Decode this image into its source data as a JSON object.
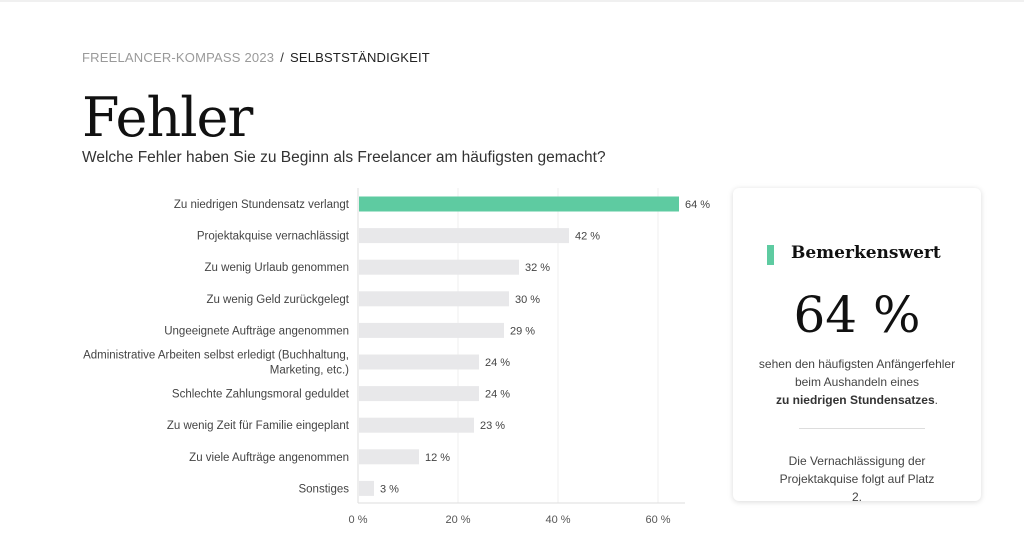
{
  "breadcrumb": {
    "parent": "FREELANCER-KOMPASS 2023",
    "separator": "/",
    "current": "SELBSTSTÄNDIGKEIT"
  },
  "title": "Fehler",
  "subtitle": "Welche Fehler haben Sie zu Beginn als Freelancer am häufigsten gemacht?",
  "colors": {
    "highlight": "#5ecba1",
    "bar": "#e8e8ea"
  },
  "chart_data": {
    "type": "bar",
    "orientation": "horizontal",
    "categories": [
      "Zu niedrigen Stundensatz verlangt",
      "Projektakquise vernachlässigt",
      "Zu wenig Urlaub genommen",
      "Zu wenig Geld zurückgelegt",
      "Ungeeignete Aufträge angenommen",
      "Administrative Arbeiten selbst erledigt (Buchhaltung, Marketing, etc.)",
      "Schlechte Zahlungsmoral geduldet",
      "Zu wenig Zeit für Familie eingeplant",
      "Zu viele Aufträge angenommen",
      "Sonstiges"
    ],
    "category_lines": [
      [
        "Zu niedrigen Stundensatz verlangt"
      ],
      [
        "Projektakquise vernachlässigt"
      ],
      [
        "Zu wenig Urlaub genommen"
      ],
      [
        "Zu wenig Geld zurückgelegt"
      ],
      [
        "Ungeeignete Aufträge angenommen"
      ],
      [
        "Administrative Arbeiten selbst erledigt (Buchhaltung,",
        "Marketing, etc.)"
      ],
      [
        "Schlechte Zahlungsmoral geduldet"
      ],
      [
        "Zu wenig Zeit für Familie eingeplant"
      ],
      [
        "Zu viele Aufträge angenommen"
      ],
      [
        "Sonstiges"
      ]
    ],
    "values": [
      64,
      42,
      32,
      30,
      29,
      24,
      24,
      23,
      12,
      3
    ],
    "data_labels": [
      "64 %",
      "42 %",
      "32 %",
      "30 %",
      "29 %",
      "24 %",
      "24 %",
      "23 %",
      "12 %",
      "3 %"
    ],
    "highlighted_index": 0,
    "xlim": [
      0,
      65
    ],
    "xticks": [
      0,
      20,
      40,
      60
    ],
    "xtick_labels": [
      "0 %",
      "20 %",
      "40 %",
      "60 %"
    ],
    "grid": true
  },
  "card": {
    "title": "Bemerkenswert",
    "big_value": "64 %",
    "text_before": "sehen den häufigsten Anfängerfehler beim Aushandeln eines",
    "text_bold": "zu niedrigen Stundensatzes",
    "text_after": ".",
    "footnote": "Die Vernachlässigung der Projektakquise folgt auf Platz 2."
  }
}
